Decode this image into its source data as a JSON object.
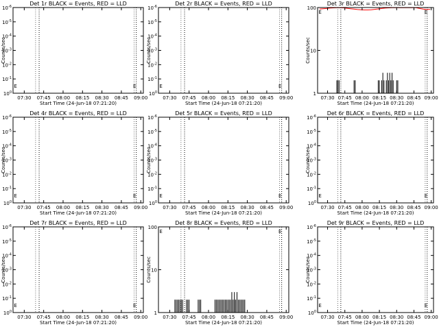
{
  "figure": {
    "x_ticks": [
      "07:30",
      "07:45",
      "08:00",
      "08:15",
      "08:30",
      "08:45",
      "09:00"
    ],
    "xlabel": "Start Time (24-Jun-18 07:21:20)",
    "ylabel": "Counts/sec",
    "marker_label": "E"
  },
  "chart_data": [
    {
      "type": "line",
      "title": "Det 1r BLACK = Events, RED = LLD",
      "y_scale": "log",
      "ylim": [
        1,
        1e-06
      ],
      "ytick_labels": [
        "10^0",
        "10^-1",
        "10^-2",
        "10^-3",
        "10^-4",
        "10^-5",
        "10^-6"
      ],
      "x": [],
      "series": [],
      "grid": false
    },
    {
      "type": "line",
      "title": "Det 2r BLACK = Events, RED = LLD",
      "y_scale": "log",
      "ylim": [
        1,
        1e-06
      ],
      "ytick_labels": [
        "10^0",
        "10^-1",
        "10^-2",
        "10^-3",
        "10^-4",
        "10^-5",
        "10^-6"
      ],
      "x": [],
      "series": [],
      "grid": false
    },
    {
      "type": "line",
      "title": "Det 3r BLACK = Events, RED = LLD",
      "y_scale": "log",
      "ylim": [
        1,
        100
      ],
      "ytick_labels": [
        "1",
        "10",
        "100"
      ],
      "x": [
        "07:23",
        "07:26",
        "07:29",
        "07:32",
        "07:35",
        "07:38",
        "07:41",
        "07:44",
        "07:47",
        "07:50",
        "07:53",
        "07:56",
        "07:59",
        "08:02",
        "08:05",
        "08:08",
        "08:11",
        "08:14",
        "08:17",
        "08:20",
        "08:23",
        "08:26",
        "08:29",
        "08:32",
        "08:35",
        "08:38",
        "08:41",
        "08:44",
        "08:47",
        "08:50",
        "08:53",
        "08:56",
        "08:59"
      ],
      "series": [
        {
          "color": "#ff0000",
          "values": [
            92,
            94,
            95,
            97,
            98,
            99,
            99,
            98,
            96,
            94,
            92,
            90,
            89,
            88,
            88,
            89,
            91,
            93,
            95,
            97,
            98,
            99,
            99,
            99,
            99,
            99,
            99,
            99,
            99,
            95,
            92,
            90,
            91
          ]
        },
        {
          "color": "#000000",
          "values": [
            1,
            1,
            1,
            1,
            1,
            1,
            1,
            1,
            1,
            1,
            1,
            1,
            1,
            1,
            1,
            1,
            1,
            1,
            1,
            1,
            1,
            1,
            1,
            1,
            1,
            1,
            1,
            1,
            1,
            1,
            1,
            1,
            1
          ]
        }
      ],
      "spikes": [
        {
          "t": "07:38",
          "v": 2
        },
        {
          "t": "07:39",
          "v": 2
        },
        {
          "t": "07:40",
          "v": 2
        },
        {
          "t": "07:53",
          "v": 2
        },
        {
          "t": "07:54",
          "v": 2
        },
        {
          "t": "08:14",
          "v": 2
        },
        {
          "t": "08:15",
          "v": 2
        },
        {
          "t": "08:17",
          "v": 2
        },
        {
          "t": "08:19",
          "v": 2
        },
        {
          "t": "08:21",
          "v": 2
        },
        {
          "t": "08:23",
          "v": 2
        },
        {
          "t": "08:25",
          "v": 2
        },
        {
          "t": "08:27",
          "v": 2
        },
        {
          "t": "08:18",
          "v": 3
        },
        {
          "t": "08:22",
          "v": 3
        },
        {
          "t": "08:24",
          "v": 3
        },
        {
          "t": "08:26",
          "v": 3
        },
        {
          "t": "08:30",
          "v": 2
        },
        {
          "t": "08:31",
          "v": 2
        }
      ],
      "grid": false
    },
    {
      "type": "line",
      "title": "Det 4r BLACK = Events, RED = LLD",
      "y_scale": "log",
      "ylim": [
        1,
        1e-06
      ],
      "ytick_labels": [
        "10^0",
        "10^-1",
        "10^-2",
        "10^-3",
        "10^-4",
        "10^-5",
        "10^-6"
      ],
      "x": [],
      "series": [],
      "grid": false
    },
    {
      "type": "line",
      "title": "Det 5r BLACK = Events, RED = LLD",
      "y_scale": "log",
      "ylim": [
        1,
        1e-06
      ],
      "ytick_labels": [
        "10^0",
        "10^-1",
        "10^-2",
        "10^-3",
        "10^-4",
        "10^-5",
        "10^-6"
      ],
      "x": [],
      "series": [],
      "grid": false
    },
    {
      "type": "line",
      "title": "Det 6r BLACK = Events, RED = LLD",
      "y_scale": "log",
      "ylim": [
        1,
        1e-06
      ],
      "ytick_labels": [
        "10^0",
        "10^-1",
        "10^-2",
        "10^-3",
        "10^-4",
        "10^-5",
        "10^-6"
      ],
      "x": [],
      "series": [],
      "grid": false
    },
    {
      "type": "line",
      "title": "Det 7r BLACK = Events, RED = LLD",
      "y_scale": "log",
      "ylim": [
        1,
        1e-06
      ],
      "ytick_labels": [
        "10^0",
        "10^-1",
        "10^-2",
        "10^-3",
        "10^-4",
        "10^-5",
        "10^-6"
      ],
      "x": [],
      "series": [],
      "grid": false
    },
    {
      "type": "line",
      "title": "Det 8r BLACK = Events, RED = LLD",
      "y_scale": "log",
      "ylim": [
        1,
        100
      ],
      "ytick_labels": [
        "1",
        "10",
        "100"
      ],
      "x": [],
      "series": [],
      "spikes": [
        {
          "t": "07:34",
          "v": 2
        },
        {
          "t": "07:35",
          "v": 2
        },
        {
          "t": "07:36",
          "v": 2
        },
        {
          "t": "07:37",
          "v": 2
        },
        {
          "t": "07:38",
          "v": 2
        },
        {
          "t": "07:39",
          "v": 2
        },
        {
          "t": "07:40",
          "v": 2
        },
        {
          "t": "07:43",
          "v": 2
        },
        {
          "t": "07:44",
          "v": 2
        },
        {
          "t": "07:45",
          "v": 2
        },
        {
          "t": "07:52",
          "v": 2
        },
        {
          "t": "07:53",
          "v": 2
        },
        {
          "t": "07:54",
          "v": 2
        },
        {
          "t": "08:05",
          "v": 2
        },
        {
          "t": "08:06",
          "v": 2
        },
        {
          "t": "08:07",
          "v": 2
        },
        {
          "t": "08:08",
          "v": 2
        },
        {
          "t": "08:09",
          "v": 2
        },
        {
          "t": "08:10",
          "v": 2
        },
        {
          "t": "08:11",
          "v": 2
        },
        {
          "t": "08:12",
          "v": 2
        },
        {
          "t": "08:13",
          "v": 2
        },
        {
          "t": "08:14",
          "v": 2
        },
        {
          "t": "08:15",
          "v": 2
        },
        {
          "t": "08:16",
          "v": 2
        },
        {
          "t": "08:17",
          "v": 2
        },
        {
          "t": "08:18",
          "v": 2
        },
        {
          "t": "08:19",
          "v": 2
        },
        {
          "t": "08:20",
          "v": 2
        },
        {
          "t": "08:21",
          "v": 2
        },
        {
          "t": "08:22",
          "v": 2
        },
        {
          "t": "08:23",
          "v": 2
        },
        {
          "t": "08:24",
          "v": 2
        },
        {
          "t": "08:25",
          "v": 2
        },
        {
          "t": "08:26",
          "v": 2
        },
        {
          "t": "08:27",
          "v": 2
        },
        {
          "t": "08:28",
          "v": 2
        },
        {
          "t": "08:18",
          "v": 3
        },
        {
          "t": "08:20",
          "v": 3
        },
        {
          "t": "08:22",
          "v": 3
        }
      ],
      "grid": false
    },
    {
      "type": "line",
      "title": "Det 9r BLACK = Events, RED = LLD",
      "y_scale": "log",
      "ylim": [
        1,
        1e-06
      ],
      "ytick_labels": [
        "10^0",
        "10^-1",
        "10^-2",
        "10^-3",
        "10^-4",
        "10^-5",
        "10^-6"
      ],
      "x": [],
      "series": [],
      "grid": false
    }
  ]
}
